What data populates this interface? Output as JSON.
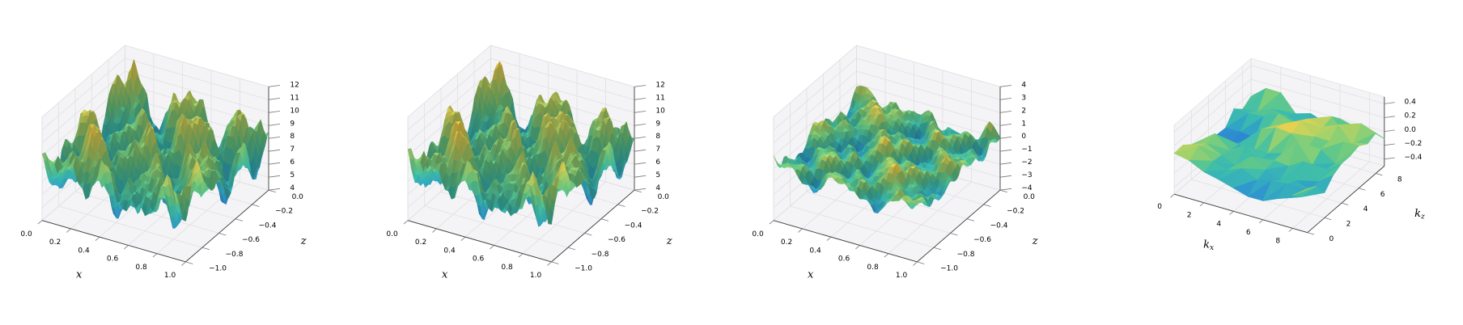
{
  "figure": {
    "background": "#ffffff",
    "panel_count": 4,
    "title": ""
  },
  "style": {
    "pane_color": "#f4f4f6",
    "grid_color": "#e0e0e4",
    "axis_color": "#3c3c3c",
    "tick_color": "#777777",
    "text_color": "#000000"
  },
  "colormap": {
    "name": "viridis-like (blue → teal → green → yellow)",
    "stops": [
      [
        0.0,
        "#2d7dd2"
      ],
      [
        0.18,
        "#2f9fcb"
      ],
      [
        0.38,
        "#3cbcae"
      ],
      [
        0.55,
        "#63c987"
      ],
      [
        0.72,
        "#a3d26b"
      ],
      [
        0.88,
        "#ddd355"
      ],
      [
        1.0,
        "#fcc944"
      ]
    ]
  },
  "chart_data": [
    {
      "type": "surface",
      "title": "",
      "xlabel": "x",
      "ylabel": "z",
      "zlabel": "",
      "xlim": [
        0,
        1
      ],
      "ylim": [
        -1,
        0
      ],
      "zlim": [
        4,
        12
      ],
      "xticks": [
        0,
        0.2,
        0.4,
        0.6,
        0.8,
        1
      ],
      "xtick_labels": [
        "0.0",
        "0.2",
        "0.4",
        "0.6",
        "0.8",
        "1.0"
      ],
      "yticks": [
        0,
        -0.2,
        -0.4,
        -0.6,
        -0.8,
        -1
      ],
      "ytick_labels": [
        "0.0",
        "−0.2",
        "−0.4",
        "−0.6",
        "−0.8",
        "−1.0"
      ],
      "zticks": [
        4,
        5,
        6,
        7,
        8,
        9,
        10,
        11,
        12
      ],
      "ztick_labels": [
        "4",
        "5",
        "6",
        "7",
        "8",
        "9",
        "10",
        "11",
        "12"
      ],
      "view": {
        "elev": 30,
        "azim": -60
      },
      "grid": true,
      "legend": false,
      "description": "Highly oscillatory 3D surface over x∈[0,1], z∈[-1,0]; many sharp peaks; height ranges ≈4 to ≈12; blue valleys, yellow peaks",
      "surface_gen": {
        "n": 46,
        "base": 8,
        "terms": [
          [
            2.0,
            2.5,
            0.6,
            2.0,
            1.0
          ],
          [
            1.1,
            4.5,
            1.9,
            3.5,
            0.6
          ],
          [
            0.9,
            1.3,
            2.8,
            0.9,
            2.3
          ],
          [
            0.5,
            8.0,
            0.4,
            6.5,
            1.7
          ],
          [
            0.3,
            15.0,
            0.2,
            1.0,
            0.4
          ]
        ],
        "noise": 0.15,
        "seed": 7,
        "smooth": 0,
        "tri": false
      }
    },
    {
      "type": "surface",
      "title": "",
      "xlabel": "x",
      "ylabel": "z",
      "zlabel": "",
      "xlim": [
        0,
        1
      ],
      "ylim": [
        -1,
        0
      ],
      "zlim": [
        4,
        12
      ],
      "xticks": [
        0,
        0.2,
        0.4,
        0.6,
        0.8,
        1
      ],
      "xtick_labels": [
        "0.0",
        "0.2",
        "0.4",
        "0.6",
        "0.8",
        "1.0"
      ],
      "yticks": [
        0,
        -0.2,
        -0.4,
        -0.6,
        -0.8,
        -1
      ],
      "ytick_labels": [
        "0.0",
        "−0.2",
        "−0.4",
        "−0.6",
        "−0.8",
        "−1.0"
      ],
      "zticks": [
        4,
        5,
        6,
        7,
        8,
        9,
        10,
        11,
        12
      ],
      "ztick_labels": [
        "4",
        "5",
        "6",
        "7",
        "8",
        "9",
        "10",
        "11",
        "12"
      ],
      "view": {
        "elev": 30,
        "azim": -60
      },
      "grid": true,
      "legend": false,
      "description": "Nearly identical oscillatory surface to panel 1; height ≈4–12 over x∈[0,1], z∈[-1,0]",
      "surface_gen": {
        "n": 46,
        "base": 8,
        "terms": [
          [
            2.0,
            2.5,
            0.7,
            2.0,
            0.9
          ],
          [
            1.1,
            4.5,
            2.0,
            3.5,
            0.7
          ],
          [
            0.9,
            1.3,
            2.9,
            0.9,
            2.2
          ],
          [
            0.5,
            8.0,
            0.5,
            6.5,
            1.6
          ],
          [
            0.3,
            15.0,
            0.3,
            1.0,
            0.5
          ]
        ],
        "noise": 0.15,
        "seed": 11,
        "smooth": 0,
        "tri": false
      }
    },
    {
      "type": "surface",
      "title": "",
      "xlabel": "x",
      "ylabel": "z",
      "zlabel": "",
      "xlim": [
        0,
        1
      ],
      "ylim": [
        -1,
        0
      ],
      "zlim": [
        -4,
        4
      ],
      "xticks": [
        0,
        0.2,
        0.4,
        0.6,
        0.8,
        1
      ],
      "xtick_labels": [
        "0.0",
        "0.2",
        "0.4",
        "0.6",
        "0.8",
        "1.0"
      ],
      "yticks": [
        0,
        -0.2,
        -0.4,
        -0.6,
        -0.8,
        -1
      ],
      "ytick_labels": [
        "0.0",
        "−0.2",
        "−0.4",
        "−0.6",
        "−0.8",
        "−1.0"
      ],
      "zticks": [
        -4,
        -3,
        -2,
        -1,
        0,
        1,
        2,
        3,
        4
      ],
      "ztick_labels": [
        "−4",
        "−3",
        "−2",
        "−1",
        "0",
        "1",
        "2",
        "3",
        "4"
      ],
      "view": {
        "elev": 30,
        "azim": -60
      },
      "grid": true,
      "legend": false,
      "description": "Flatter bumpy surface centered near 0 on a −4…4 vertical axis; mild peaks ≈±2; mostly green/teal with yellow bump tops",
      "surface_gen": {
        "n": 40,
        "base": 0,
        "terms": [
          [
            0.7,
            2.2,
            1.2,
            1.8,
            0.3
          ],
          [
            0.5,
            4.5,
            0.4,
            3.6,
            1.9
          ],
          [
            0.35,
            7.5,
            2.2,
            6.0,
            0.9
          ],
          [
            0.3,
            1.0,
            0.5,
            0.8,
            1.2
          ]
        ],
        "noise": 0.5,
        "seed": 5,
        "smooth": 1,
        "tri": false
      }
    },
    {
      "type": "surface",
      "title": "",
      "xlabel": "k_x",
      "ylabel": "k_z",
      "zlabel": "",
      "xlim": [
        0,
        9
      ],
      "ylim": [
        0,
        9
      ],
      "zlim": [
        -0.5,
        0.5
      ],
      "xticks": [
        0,
        2,
        4,
        6,
        8
      ],
      "xtick_labels": [
        "0",
        "2",
        "4",
        "6",
        "8"
      ],
      "yticks": [
        0,
        2,
        4,
        6,
        8
      ],
      "ytick_labels": [
        "0",
        "2",
        "4",
        "6",
        "8"
      ],
      "zticks": [
        0.4,
        0.2,
        0,
        -0.2,
        -0.4
      ],
      "ztick_labels": [
        "0.4",
        "0.2",
        "0.0",
        "−0.2",
        "−0.4"
      ],
      "view": {
        "elev": 30,
        "azim": -60
      },
      "grid": true,
      "legend": false,
      "description": "Coarse triangulated surface over k_x, k_z ∈ [0,9]; small noisy values within ≈±0.4; mostly teal/green facets with scattered blue and yellow triangles",
      "surface_gen": {
        "n": 9,
        "base": 0,
        "terms": [
          [
            0.1,
            0.9,
            0.8,
            0.7,
            0.3
          ]
        ],
        "noise": 0.16,
        "seed": 13,
        "smooth": 0,
        "tri": true
      }
    }
  ]
}
